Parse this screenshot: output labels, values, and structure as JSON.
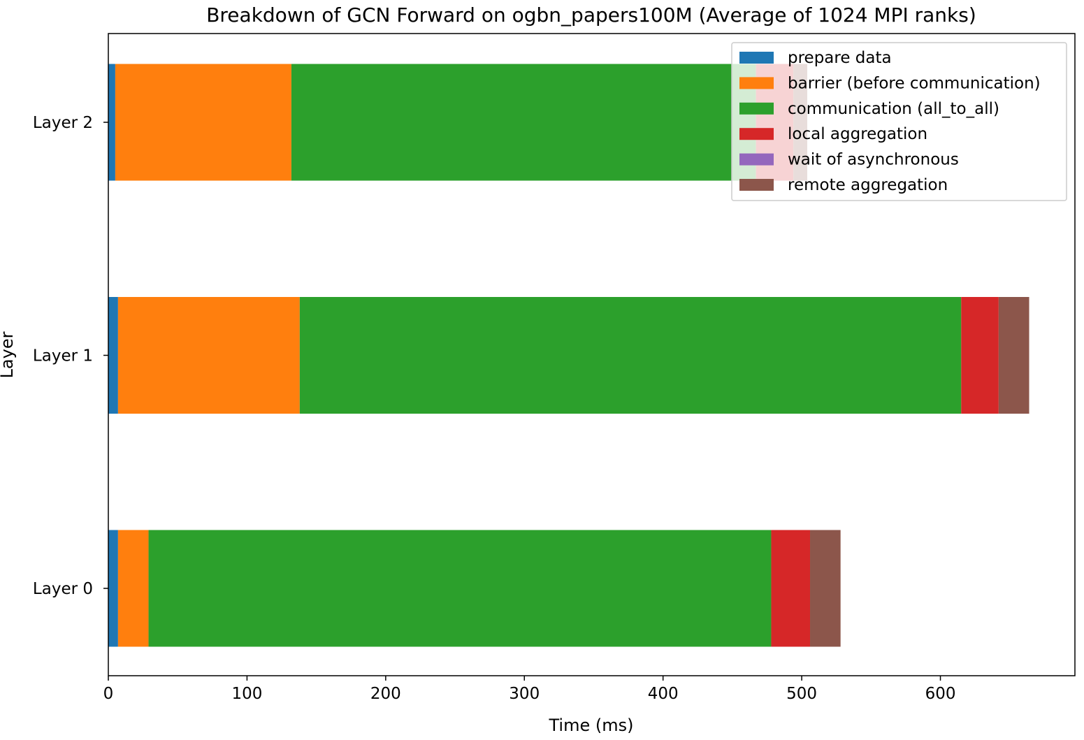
{
  "chart_data": {
    "type": "bar",
    "orientation": "horizontal",
    "stacked": true,
    "title": "Breakdown of GCN Forward on ogbn_papers100M (Average of 1024 MPI ranks)",
    "xlabel": "Time (ms)",
    "ylabel": "Layer",
    "xlim": [
      0,
      697
    ],
    "xticks": [
      0,
      100,
      200,
      300,
      400,
      500,
      600
    ],
    "categories": [
      "Layer 0",
      "Layer 1",
      "Layer 2"
    ],
    "legend_position": "top-right",
    "grid": false,
    "series": [
      {
        "name": "prepare data",
        "color": "#1f77b4",
        "values": [
          7,
          7,
          5
        ]
      },
      {
        "name": "barrier (before communication)",
        "color": "#ff7f0e",
        "values": [
          22,
          131,
          127
        ]
      },
      {
        "name": "communication (all_to_all)",
        "color": "#2ca02c",
        "values": [
          449,
          477,
          335
        ]
      },
      {
        "name": "local aggregation",
        "color": "#d62728",
        "values": [
          28,
          27,
          27
        ]
      },
      {
        "name": "wait of asynchronous",
        "color": "#9467bd",
        "values": [
          0,
          0,
          0
        ]
      },
      {
        "name": "remote aggregation",
        "color": "#8c564b",
        "values": [
          22,
          22,
          10
        ]
      }
    ]
  }
}
